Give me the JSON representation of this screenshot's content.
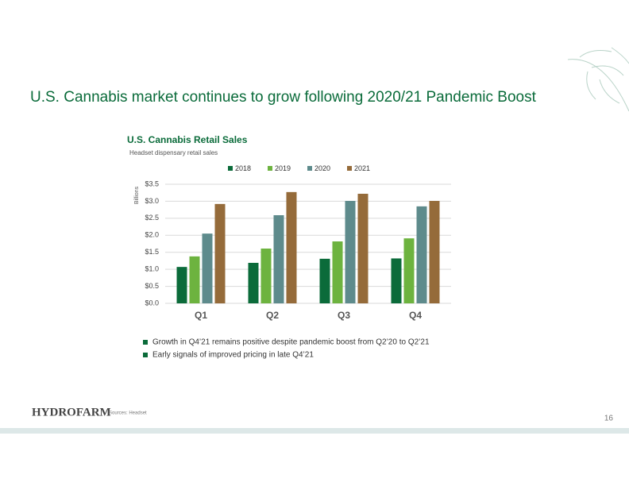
{
  "header": {
    "title": "U.S. Cannabis market continues to grow following 2020/21 Pandemic Boost"
  },
  "chart_data": {
    "type": "bar",
    "title": "U.S. Cannabis Retail Sales",
    "subtitle": "Headset dispensary retail sales",
    "y_label": "Billions",
    "categories": [
      "Q1",
      "Q2",
      "Q3",
      "Q4"
    ],
    "series": [
      {
        "name": "2018",
        "color": "#0b6b3a",
        "values": [
          1.07,
          1.19,
          1.31,
          1.32
        ]
      },
      {
        "name": "2019",
        "color": "#6db33f",
        "values": [
          1.38,
          1.61,
          1.82,
          1.91
        ]
      },
      {
        "name": "2020",
        "color": "#5e8b8c",
        "values": [
          2.05,
          2.59,
          3.01,
          2.85
        ]
      },
      {
        "name": "2021",
        "color": "#956b3a",
        "values": [
          2.92,
          3.27,
          3.22,
          3.01
        ]
      }
    ],
    "ylim": [
      0,
      3.5
    ],
    "yticks": [
      {
        "value": 0,
        "label": "$0.0"
      },
      {
        "value": 0.5,
        "label": "$0.5"
      },
      {
        "value": 1,
        "label": "$1.0"
      },
      {
        "value": 1.5,
        "label": "$1.5"
      },
      {
        "value": 2,
        "label": "$2.0"
      },
      {
        "value": 2.5,
        "label": "$2.5"
      },
      {
        "value": 3,
        "label": "$3.0"
      },
      {
        "value": 3.5,
        "label": "$3.5"
      }
    ],
    "grid": true,
    "legend": "top"
  },
  "bullets": [
    "Growth in Q4’21 remains positive despite pandemic boost from Q2’20 to Q2’21",
    "Early signals of improved pricing in late Q4’21"
  ],
  "footer": {
    "logo": "HYDROFARM",
    "source": "Sources: Headset",
    "page": "16"
  }
}
